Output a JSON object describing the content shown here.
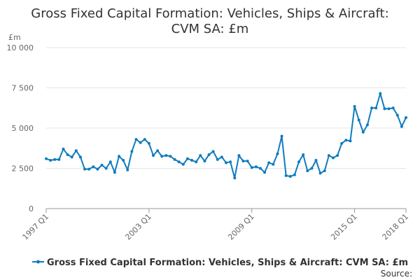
{
  "chart_data": {
    "type": "line",
    "title_lines": [
      "Gross Fixed Capital Formation: Vehicles, Ships & Aircraft:",
      "CVM SA: £m"
    ],
    "ylabel": "£m",
    "ylim": [
      0,
      10000
    ],
    "yticks": [
      {
        "value": 0,
        "label": "0"
      },
      {
        "value": 2500,
        "label": "2 500"
      },
      {
        "value": 5000,
        "label": "5 000"
      },
      {
        "value": 7500,
        "label": "7 500"
      },
      {
        "value": 10000,
        "label": "10 000"
      }
    ],
    "x_start": "1997 Q1",
    "x_end": "2018 Q1",
    "xticks": [
      {
        "index": 0,
        "label": "1997 Q1"
      },
      {
        "index": 24,
        "label": "2003 Q1"
      },
      {
        "index": 48,
        "label": "2009 Q1"
      },
      {
        "index": 72,
        "label": "2015 Q1"
      },
      {
        "index": 84,
        "label": "2018 Q1"
      }
    ],
    "grid": true,
    "legend_position": "bottom",
    "source_label": "Source:",
    "series": [
      {
        "name": "Gross Fixed Capital Formation: Vehicles, Ships & Aircraft: CVM SA: £m",
        "color": "#0f7cbf",
        "values": [
          3100,
          3000,
          3050,
          3050,
          3700,
          3350,
          3200,
          3600,
          3200,
          2450,
          2450,
          2600,
          2450,
          2700,
          2500,
          2900,
          2250,
          3250,
          3000,
          2400,
          3550,
          4300,
          4100,
          4300,
          4050,
          3300,
          3600,
          3250,
          3300,
          3250,
          3050,
          2900,
          2750,
          3100,
          3000,
          2900,
          3300,
          2950,
          3350,
          3550,
          3050,
          3200,
          2850,
          2900,
          1900,
          3300,
          2950,
          2950,
          2550,
          2600,
          2500,
          2250,
          2850,
          2750,
          3400,
          4500,
          2050,
          2000,
          2100,
          2900,
          3350,
          2350,
          2500,
          3000,
          2200,
          2350,
          3300,
          3150,
          3300,
          4050,
          4250,
          4200,
          6350,
          5500,
          4750,
          5200,
          6250,
          6250,
          7150,
          6200,
          6200,
          6250,
          5800,
          5100,
          5650
        ]
      }
    ]
  }
}
